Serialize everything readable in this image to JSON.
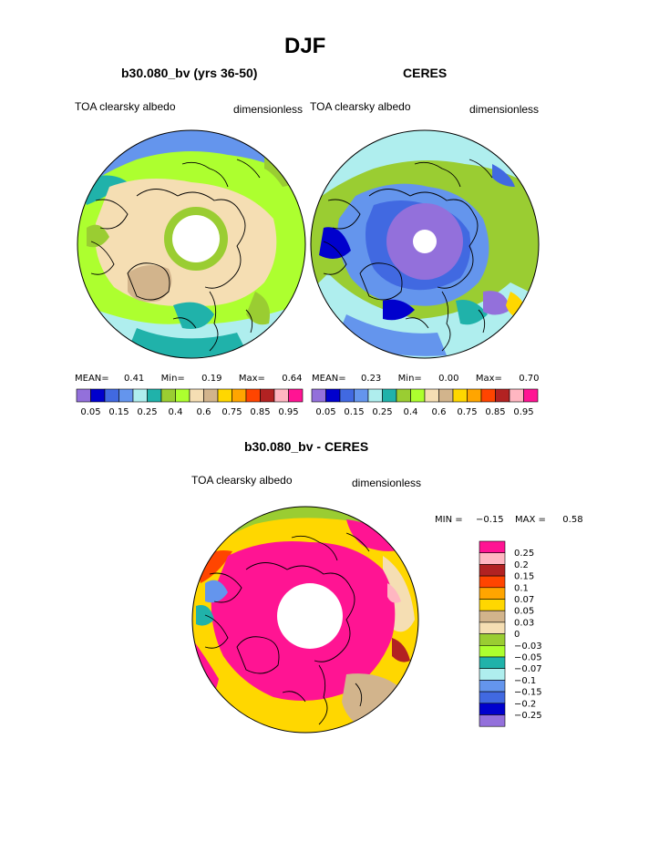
{
  "title": "DJF",
  "panels": [
    {
      "id": "model",
      "subtitle": "b30.080_bv (yrs 36-50)",
      "left_label": "TOA clearsky albedo",
      "right_label": "dimensionless",
      "stats": {
        "mean_label": "MEAN=",
        "mean": "0.41",
        "min_label": "Min=",
        "min": "0.19",
        "max_label": "Max=",
        "max": "0.64"
      }
    },
    {
      "id": "ceres",
      "subtitle": "CERES",
      "left_label": "TOA clearsky albedo",
      "right_label": "dimensionless",
      "stats": {
        "mean_label": "MEAN=",
        "mean": "0.23",
        "min_label": "Min=",
        "min": "0.00",
        "max_label": "Max=",
        "max": "0.70"
      }
    },
    {
      "id": "diff",
      "subtitle": "b30.080_bv - CERES",
      "left_label": "TOA clearsky albedo",
      "right_label": "dimensionless",
      "stats": {
        "min_label": "MIN =",
        "min": "−0.15",
        "max_label": "MAX =",
        "max": "0.58"
      }
    }
  ],
  "chart_data": [
    {
      "type": "heatmap",
      "projection": "polar-stereographic",
      "title": "b30.080_bv (yrs 36-50)",
      "variable": "TOA clearsky albedo",
      "units": "dimensionless",
      "mean": 0.41,
      "min": 0.19,
      "max": 0.64,
      "levels": [
        0.05,
        0.1,
        0.15,
        0.2,
        0.25,
        0.3,
        0.4,
        0.5,
        0.6,
        0.7,
        0.75,
        0.8,
        0.85,
        0.9,
        0.95
      ],
      "level_labels": [
        "0.05",
        "0.15",
        "0.25",
        "0.4",
        "0.6",
        "0.75",
        "0.85",
        "0.95"
      ],
      "colors": [
        "#9370db",
        "#0000cd",
        "#4169e1",
        "#6495ed",
        "#afeeee",
        "#20b2aa",
        "#9acd32",
        "#adff2f",
        "#f5deb3",
        "#d2b48c",
        "#ffd700",
        "#ffa500",
        "#ff4500",
        "#b22222",
        "#ffb6c1",
        "#ff1493"
      ]
    },
    {
      "type": "heatmap",
      "projection": "polar-stereographic",
      "title": "CERES",
      "variable": "TOA clearsky albedo",
      "units": "dimensionless",
      "mean": 0.23,
      "min": 0.0,
      "max": 0.7,
      "levels": [
        0.05,
        0.1,
        0.15,
        0.2,
        0.25,
        0.3,
        0.4,
        0.5,
        0.6,
        0.7,
        0.75,
        0.8,
        0.85,
        0.9,
        0.95
      ],
      "level_labels": [
        "0.05",
        "0.15",
        "0.25",
        "0.4",
        "0.6",
        "0.75",
        "0.85",
        "0.95"
      ],
      "colors": [
        "#9370db",
        "#0000cd",
        "#4169e1",
        "#6495ed",
        "#afeeee",
        "#20b2aa",
        "#9acd32",
        "#adff2f",
        "#f5deb3",
        "#d2b48c",
        "#ffd700",
        "#ffa500",
        "#ff4500",
        "#b22222",
        "#ffb6c1",
        "#ff1493"
      ]
    },
    {
      "type": "heatmap",
      "projection": "polar-stereographic",
      "title": "b30.080_bv - CERES",
      "variable": "TOA clearsky albedo",
      "units": "dimensionless",
      "min": -0.15,
      "max": 0.58,
      "levels": [
        "0.25",
        "0.2",
        "0.15",
        "0.1",
        "0.07",
        "0.05",
        "0.03",
        "0",
        "−0.03",
        "−0.05",
        "−0.07",
        "−0.1",
        "−0.15",
        "−0.2",
        "−0.25"
      ],
      "colors": [
        "#ff1493",
        "#ffb6c1",
        "#b22222",
        "#ff4500",
        "#ffa500",
        "#ffd700",
        "#d2b48c",
        "#f5deb3",
        "#9acd32",
        "#adff2f",
        "#20b2aa",
        "#afeeee",
        "#6495ed",
        "#4169e1",
        "#0000cd",
        "#9370db"
      ]
    }
  ]
}
